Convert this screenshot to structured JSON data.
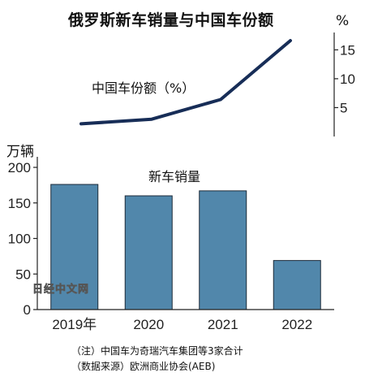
{
  "chart_data": {
    "title": "俄罗斯新车销量与中国车份额",
    "bar_chart": {
      "type": "bar",
      "title": "新车销量",
      "unit": "万辆",
      "categories": [
        "2019年",
        "2020",
        "2021",
        "2022"
      ],
      "values": [
        176,
        160,
        167,
        69
      ],
      "ylim": [
        0,
        200
      ],
      "yticks": [
        0,
        50,
        100,
        150,
        200
      ],
      "bar_color": "#5187ab"
    },
    "line_chart": {
      "type": "line",
      "title": "中国车份额（%）",
      "unit": "%",
      "categories": [
        "2019年",
        "2020",
        "2021",
        "2022"
      ],
      "values": [
        2.2,
        3.0,
        6.4,
        16.6
      ],
      "ylim": [
        0,
        18
      ],
      "yticks": [
        5,
        10,
        15
      ],
      "line_color": "#172d57"
    }
  },
  "watermark": "日经中文网",
  "notes": {
    "line1": "（注）中国车为奇瑞汽车集团等3家合计",
    "line2": "（数据来源）欧洲商业协会(AEB)"
  }
}
